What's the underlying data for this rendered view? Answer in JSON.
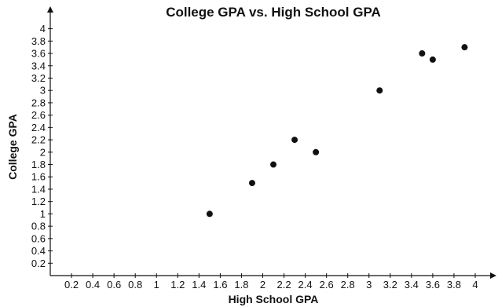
{
  "chart_data": {
    "type": "scatter",
    "title": "College GPA vs. High School GPA",
    "xlabel": "High School GPA",
    "ylabel": "College GPA",
    "xlim": [
      0,
      4.2
    ],
    "ylim": [
      0,
      4.2
    ],
    "grid": false,
    "legend": "none",
    "x_ticks": [
      "0.2",
      "0.4",
      "0.6",
      "0.8",
      "1",
      "1.2",
      "1.4",
      "1.6",
      "1.8",
      "2",
      "2.2",
      "2.4",
      "2.6",
      "2.8",
      "3",
      "3.2",
      "3.4",
      "3.6",
      "3.8",
      "4"
    ],
    "y_ticks": [
      "0.2",
      "0.4",
      "0.6",
      "0.8",
      "1",
      "1.2",
      "1.4",
      "1.6",
      "1.8",
      "2",
      "2.2",
      "2.4",
      "2.6",
      "2.8",
      "3",
      "3.2",
      "3.4",
      "3.6",
      "3.8",
      "4"
    ],
    "points": [
      {
        "x": 1.5,
        "y": 1.0
      },
      {
        "x": 1.9,
        "y": 1.5
      },
      {
        "x": 2.1,
        "y": 1.8
      },
      {
        "x": 2.3,
        "y": 2.2
      },
      {
        "x": 2.5,
        "y": 2.0
      },
      {
        "x": 3.1,
        "y": 3.0
      },
      {
        "x": 3.5,
        "y": 3.6
      },
      {
        "x": 3.6,
        "y": 3.5
      },
      {
        "x": 3.9,
        "y": 3.7
      }
    ]
  }
}
